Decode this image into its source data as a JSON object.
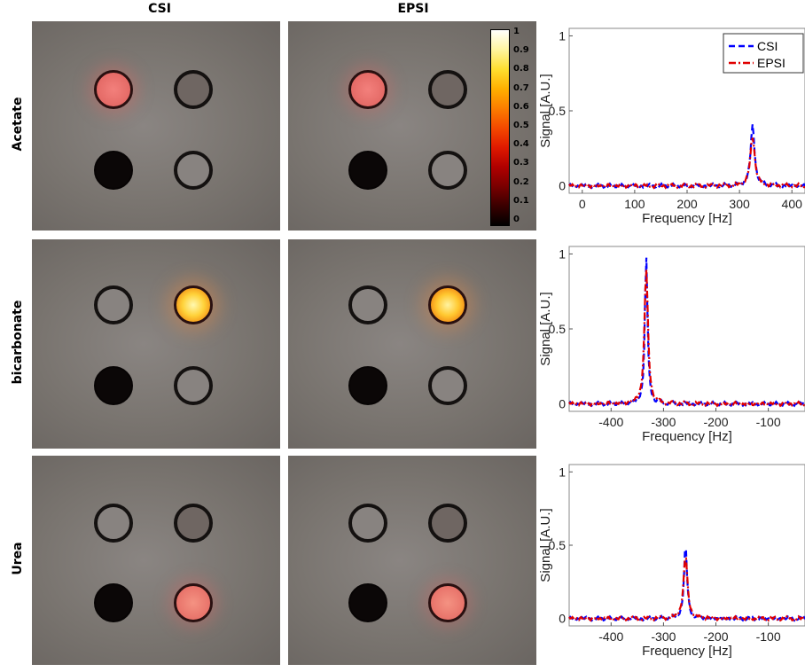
{
  "columns": {
    "csi": "CSI",
    "epsi": "EPSI"
  },
  "rows": [
    {
      "label": "Acetate"
    },
    {
      "label": "bicarbonate"
    },
    {
      "label": "Urea"
    }
  ],
  "colorbar": {
    "ticks": [
      "1",
      "0.9",
      "0.8",
      "0.7",
      "0.6",
      "0.5",
      "0.4",
      "0.3",
      "0.2",
      "0.1",
      "0"
    ],
    "colormap": "hot"
  },
  "chart_data": [
    {
      "type": "line",
      "xlabel": "Frequency [Hz]",
      "ylabel": "Signal [A.U.]",
      "xlim": [
        -25,
        425
      ],
      "ylim": [
        -0.05,
        1.05
      ],
      "xticks": [
        "0",
        "100",
        "200",
        "300",
        "400"
      ],
      "yticks": [
        "0",
        "0.5",
        "1"
      ],
      "legend": {
        "position": "top-right",
        "entries": [
          "CSI",
          "EPSI"
        ]
      },
      "series": [
        {
          "name": "CSI",
          "style": "dashed",
          "color": "#0000ff",
          "peak_x": 325,
          "peak_y": 0.4,
          "width": 9
        },
        {
          "name": "EPSI",
          "style": "dash-dot",
          "color": "#e00000",
          "peak_x": 325,
          "peak_y": 0.33,
          "width": 10
        }
      ]
    },
    {
      "type": "line",
      "xlabel": "Frequency [Hz]",
      "ylabel": "Signal [A.U.]",
      "xlim": [
        -480,
        -30
      ],
      "ylim": [
        -0.05,
        1.05
      ],
      "xticks": [
        "-400",
        "-300",
        "-200",
        "-100"
      ],
      "yticks": [
        "0",
        "0.5",
        "1"
      ],
      "series": [
        {
          "name": "CSI",
          "style": "dashed",
          "color": "#0000ff",
          "peak_x": -333,
          "peak_y": 0.98,
          "width": 6
        },
        {
          "name": "EPSI",
          "style": "dash-dot",
          "color": "#e00000",
          "peak_x": -333,
          "peak_y": 0.9,
          "width": 8
        }
      ]
    },
    {
      "type": "line",
      "xlabel": "Frequency [Hz]",
      "ylabel": "Signal [A.U.]",
      "xlim": [
        -480,
        -30
      ],
      "ylim": [
        -0.05,
        1.05
      ],
      "xticks": [
        "-400",
        "-300",
        "-200",
        "-100"
      ],
      "yticks": [
        "0",
        "0.5",
        "1"
      ],
      "series": [
        {
          "name": "CSI",
          "style": "dashed",
          "color": "#0000ff",
          "peak_x": -258,
          "peak_y": 0.5,
          "width": 7
        },
        {
          "name": "EPSI",
          "style": "dash-dot",
          "color": "#e00000",
          "peak_x": -258,
          "peak_y": 0.43,
          "width": 9
        }
      ]
    }
  ]
}
